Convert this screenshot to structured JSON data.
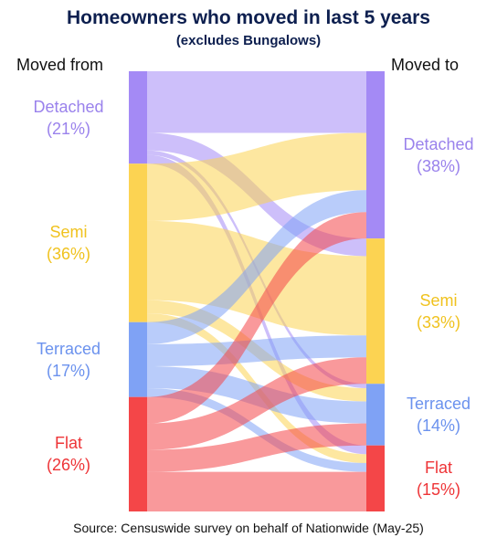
{
  "title": "Homeowners who moved in last 5 years",
  "subtitle": "(excludes Bungalows)",
  "left_header": "Moved from",
  "right_header": "Moved to",
  "source": "Source: Censuswide survey on behalf of Nationwide (May-25)",
  "colors": {
    "Detached": "#a48af5",
    "Semi": "#fcd352",
    "Terraced": "#7fa2f5",
    "Flat": "#f44648"
  },
  "label_colors": {
    "Detached": "#9a82ec",
    "Semi": "#f0c21e",
    "Terraced": "#6b92ee",
    "Flat": "#ee3437"
  },
  "chart_data": {
    "type": "sankey",
    "unit": "%",
    "sources": [
      {
        "name": "Detached",
        "pct_label": "(21%)",
        "value": 21
      },
      {
        "name": "Semi",
        "pct_label": "(36%)",
        "value": 36
      },
      {
        "name": "Terraced",
        "pct_label": "(17%)",
        "value": 17
      },
      {
        "name": "Flat",
        "pct_label": "(26%)",
        "value": 26
      }
    ],
    "targets": [
      {
        "name": "Detached",
        "pct_label": "(38%)",
        "value": 38
      },
      {
        "name": "Semi",
        "pct_label": "(33%)",
        "value": 33
      },
      {
        "name": "Terraced",
        "pct_label": "(14%)",
        "value": 14
      },
      {
        "name": "Flat",
        "pct_label": "(15%)",
        "value": 15
      }
    ],
    "flows": [
      {
        "from": "Detached",
        "to": "Detached",
        "value": 14
      },
      {
        "from": "Detached",
        "to": "Semi",
        "value": 4
      },
      {
        "from": "Detached",
        "to": "Terraced",
        "value": 1
      },
      {
        "from": "Detached",
        "to": "Flat",
        "value": 2
      },
      {
        "from": "Semi",
        "to": "Detached",
        "value": 13
      },
      {
        "from": "Semi",
        "to": "Semi",
        "value": 18
      },
      {
        "from": "Semi",
        "to": "Terraced",
        "value": 3
      },
      {
        "from": "Semi",
        "to": "Flat",
        "value": 2
      },
      {
        "from": "Terraced",
        "to": "Detached",
        "value": 5
      },
      {
        "from": "Terraced",
        "to": "Semi",
        "value": 5
      },
      {
        "from": "Terraced",
        "to": "Terraced",
        "value": 5
      },
      {
        "from": "Terraced",
        "to": "Flat",
        "value": 2
      },
      {
        "from": "Flat",
        "to": "Detached",
        "value": 6
      },
      {
        "from": "Flat",
        "to": "Semi",
        "value": 6
      },
      {
        "from": "Flat",
        "to": "Terraced",
        "value": 5
      },
      {
        "from": "Flat",
        "to": "Flat",
        "value": 9
      }
    ]
  }
}
